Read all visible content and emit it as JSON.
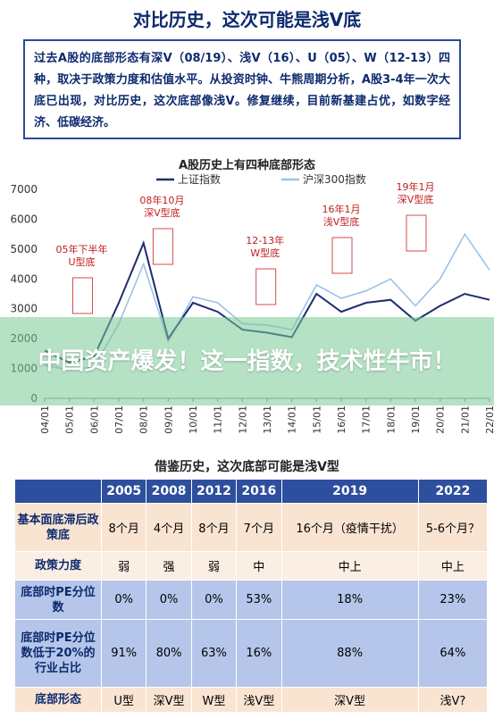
{
  "page": {
    "title": "对比历史，这次可能是浅V底",
    "intro": "过去A股的底部形态有深V（08/19）、浅V（16）、U（05）、W（12-13）四种，取决于政策力度和估值水平。从投资时钟、牛熊周期分析，A股3-4年一次大底已出现，对比历史，这次底部像浅V。修复继续，目前新基建占优，如数字经济、低碳经济。",
    "overlay_headline": "中国资产爆发！这一指数，技术性牛市！",
    "table_title": "借鉴历史，这次底部可能是浅V型"
  },
  "chart_data": {
    "type": "line",
    "title": "A股历史上有四种底部形态",
    "x": [
      "04/01",
      "05/01",
      "06/01",
      "07/01",
      "08/01",
      "09/01",
      "10/01",
      "11/01",
      "12/01",
      "13/01",
      "14/01",
      "15/01",
      "16/01",
      "17/01",
      "18/01",
      "19/01",
      "20/01",
      "21/01",
      "22/01"
    ],
    "ylim": [
      0,
      7000
    ],
    "yticks": [
      0,
      1000,
      2000,
      3000,
      4000,
      5000,
      6000,
      7000
    ],
    "grid": false,
    "legend_position": "top-center",
    "series": [
      {
        "name": "上证指数",
        "color": "#1f2d6e",
        "values": [
          1600,
          1200,
          1400,
          3200,
          5200,
          2000,
          3200,
          2900,
          2300,
          2200,
          2050,
          3500,
          2900,
          3200,
          3300,
          2600,
          3100,
          3500,
          3300
        ]
      },
      {
        "name": "沪深300指数",
        "color": "#9cc3e6",
        "values": [
          1100,
          950,
          1050,
          2500,
          4500,
          1900,
          3400,
          3200,
          2500,
          2450,
          2300,
          3800,
          3350,
          3600,
          4000,
          3100,
          4000,
          5500,
          4300
        ]
      }
    ],
    "annotations": [
      {
        "label": "05年下半年 U型底",
        "x": "05/07"
      },
      {
        "label": "08年10月 深V型底",
        "x": "08/10"
      },
      {
        "label": "12-13年 W型底",
        "x": "12/12"
      },
      {
        "label": "16年1月 浅V型底",
        "x": "16/01"
      },
      {
        "label": "19年1月 深V型底",
        "x": "19/01"
      }
    ]
  },
  "table": {
    "headers": [
      "",
      "2005",
      "2008",
      "2012",
      "2016",
      "2019",
      "2022"
    ],
    "rows": [
      {
        "label": "基本面底滞后政策底",
        "cells": [
          "8个月",
          "4个月",
          "8个月",
          "7个月",
          "16个月（疫情干扰）",
          "5-6个月？"
        ]
      },
      {
        "label": "政策力度",
        "cells": [
          "弱",
          "强",
          "弱",
          "中",
          "中上",
          "中上"
        ]
      },
      {
        "label": "底部时PE分位数",
        "cells": [
          "0%",
          "0%",
          "0%",
          "53%",
          "18%",
          "23%"
        ]
      },
      {
        "label": "底部时PE分位数低于20%的行业占比",
        "cells": [
          "91%",
          "80%",
          "63%",
          "16%",
          "88%",
          "64%"
        ]
      },
      {
        "label": "底部形态",
        "cells": [
          "U型",
          "深V型",
          "W型",
          "浅V型",
          "深V型",
          "浅V?"
        ]
      }
    ]
  }
}
